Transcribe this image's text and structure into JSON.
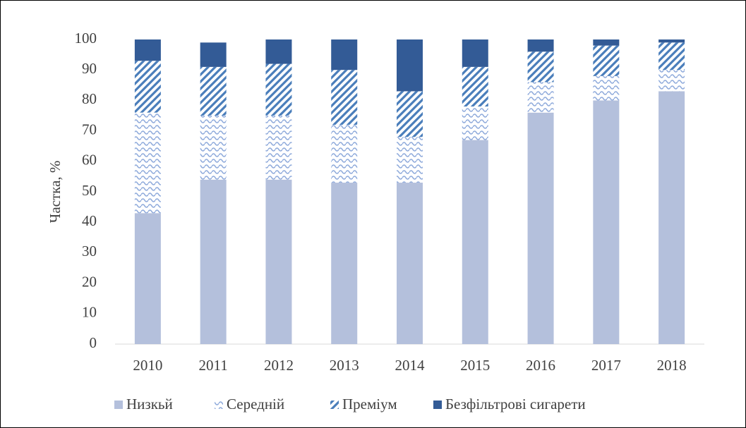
{
  "chart_data": {
    "type": "stacked_bar",
    "y_label": "Частка, %",
    "categories": [
      "2010",
      "2011",
      "2012",
      "2013",
      "2014",
      "2015",
      "2016",
      "2017",
      "2018"
    ],
    "series": [
      {
        "name": "Низкьй",
        "color": "#b4c0dc",
        "pattern": "solid",
        "values": [
          43,
          54,
          54,
          53,
          53,
          67,
          76,
          80,
          83
        ]
      },
      {
        "name": "Середній",
        "color": "#8eaadb",
        "pattern": "wave",
        "values": [
          33,
          21,
          21,
          19,
          15,
          11,
          10,
          8,
          7
        ]
      },
      {
        "name": "Преміум",
        "color": "#4a7ebb",
        "pattern": "diagonal",
        "values": [
          17,
          16,
          17,
          18,
          15,
          13,
          10,
          10,
          9
        ]
      },
      {
        "name": "Безфільтрові сигарети",
        "color": "#335b96",
        "pattern": "solid",
        "values": [
          7,
          8,
          8,
          10,
          17,
          9,
          4,
          2,
          1
        ]
      }
    ],
    "ylim": [
      0,
      100
    ],
    "yticks": [
      0,
      10,
      20,
      30,
      40,
      50,
      60,
      70,
      80,
      90,
      100
    ],
    "legend": "bottom"
  }
}
